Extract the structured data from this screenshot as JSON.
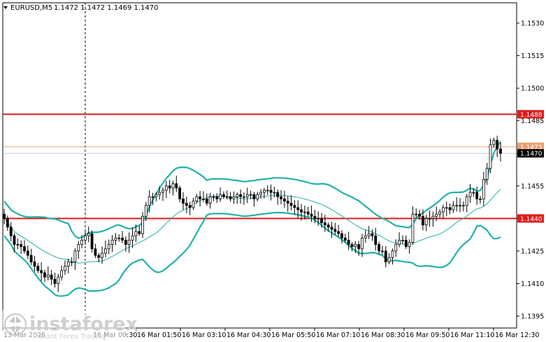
{
  "header": {
    "symbol": "EURUSD,M5",
    "ohlc": "1.1472 1.1472 1.1469 1.1470"
  },
  "logo": {
    "brand": "instaforex",
    "tagline": "Instant Forex Trading"
  },
  "colors": {
    "resistance_line": "#e01b1b",
    "current_price_line": "#e8a070",
    "bollinger": "#20b2aa",
    "candle": "#000000",
    "price_tag_current": "#000000",
    "price_tag_bid": "#e8a070"
  },
  "chart_data": {
    "type": "candlestick",
    "y_ticks": [
      "1.1530",
      "1.1515",
      "1.1500",
      "1.1485",
      "1.1470",
      "1.1455",
      "1.1440",
      "1.1425",
      "1.1410",
      "1.1395"
    ],
    "ylim": [
      1.1389,
      1.1545
    ],
    "x_ticks": [
      "13 Mar 2026",
      "16 Mar 00:30",
      "16 Mar 01:50",
      "16 Mar 03:10",
      "16 Mar 04:30",
      "16 Mar 05:50",
      "16 Mar 07:10",
      "16 Mar 08:30",
      "16 Mar 09:50",
      "16 Mar 11:10",
      "16 Mar 12:30"
    ],
    "horizontal_levels": [
      {
        "value": 1.1488,
        "label": "1.1488"
      },
      {
        "value": 1.144,
        "label": "1.1440"
      }
    ],
    "current_price": {
      "value": 1.147,
      "label": "1.1470"
    },
    "bid_price": {
      "value": 1.1473,
      "label": "1.1473"
    },
    "session_separator_index": 24,
    "candles_close": [
      1.144,
      1.1436,
      1.1432,
      1.1428,
      1.1428,
      1.1427,
      1.1425,
      1.1423,
      1.142,
      1.1418,
      1.1416,
      1.1415,
      1.1413,
      1.1414,
      1.1412,
      1.141,
      1.1413,
      1.1416,
      1.1418,
      1.142,
      1.142,
      1.1425,
      1.1428,
      1.143,
      1.1432,
      1.1433,
      1.1426,
      1.1423,
      1.1422,
      1.1424,
      1.1426,
      1.1428,
      1.143,
      1.1431,
      1.1431,
      1.143,
      1.1428,
      1.143,
      1.1432,
      1.1434,
      1.1433,
      1.1441,
      1.1446,
      1.145,
      1.145,
      1.1451,
      1.1452,
      1.1453,
      1.1455,
      1.1454,
      1.1456,
      1.1454,
      1.1449,
      1.1447,
      1.1446,
      1.1445,
      1.1448,
      1.145,
      1.1449,
      1.1449,
      1.1447,
      1.145,
      1.145,
      1.1449,
      1.1451,
      1.145,
      1.145,
      1.1449,
      1.145,
      1.1451,
      1.145,
      1.145,
      1.1451,
      1.1451,
      1.1449,
      1.1451,
      1.1452,
      1.1453,
      1.1453,
      1.1452,
      1.1452,
      1.145,
      1.1449,
      1.1448,
      1.1447,
      1.1446,
      1.1445,
      1.1444,
      1.1443,
      1.1443,
      1.1442,
      1.1441,
      1.144,
      1.144,
      1.1438,
      1.1437,
      1.1436,
      1.1435,
      1.1434,
      1.1433,
      1.1431,
      1.143,
      1.1428,
      1.1427,
      1.1428,
      1.1426,
      1.1431,
      1.1432,
      1.1433,
      1.1432,
      1.1428,
      1.1425,
      1.1425,
      1.142,
      1.1422,
      1.1425,
      1.1428,
      1.143,
      1.143,
      1.1427,
      1.1429,
      1.1442,
      1.1442,
      1.1441,
      1.1437,
      1.144,
      1.144,
      1.1441,
      1.1442,
      1.1443,
      1.1445,
      1.1445,
      1.1444,
      1.1446,
      1.1446,
      1.1446,
      1.1446,
      1.145,
      1.1452,
      1.1452,
      1.1449,
      1.1449,
      1.1458,
      1.1463,
      1.1474,
      1.1476,
      1.1472,
      1.147
    ],
    "bb_upper_closes_note": "Bollinger Bands (upper, middle, lower) overlaid"
  }
}
